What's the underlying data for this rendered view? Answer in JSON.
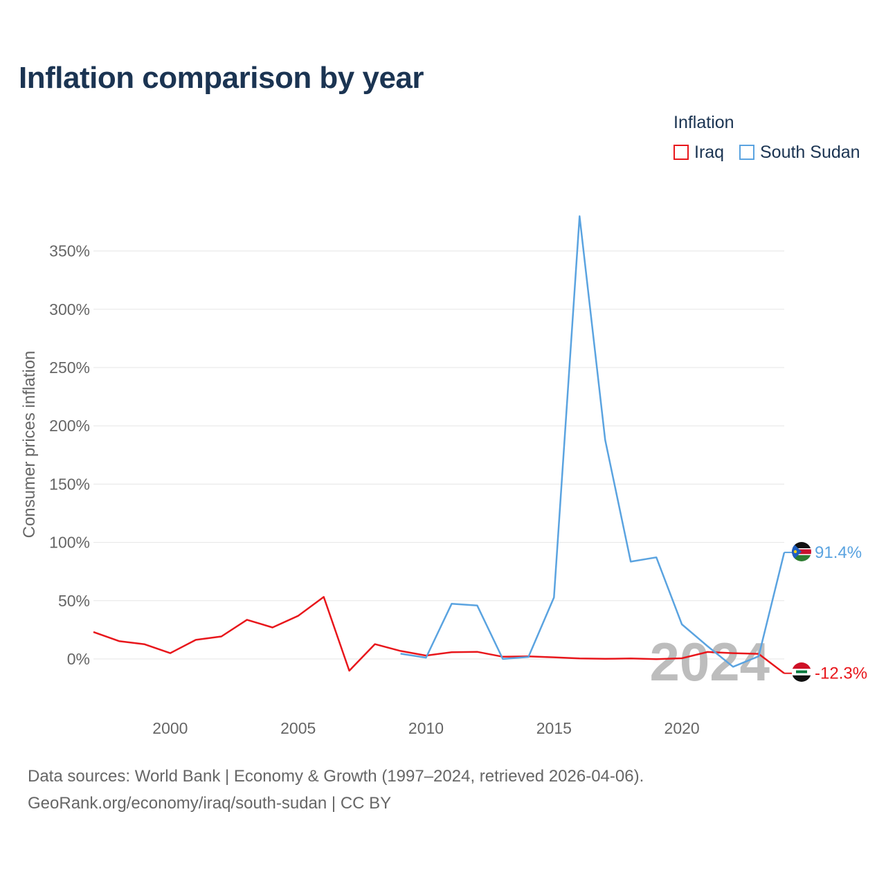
{
  "title": "Inflation comparison by year",
  "legend": {
    "title": "Inflation",
    "items": [
      {
        "name": "Iraq",
        "color": "#e8161b"
      },
      {
        "name": "South Sudan",
        "color": "#5aa3e0"
      }
    ]
  },
  "chart_data": {
    "type": "line",
    "title": "Inflation comparison by year",
    "xlabel": "",
    "ylabel": "Consumer prices inflation",
    "xlim": [
      1997,
      2024
    ],
    "ylim": [
      -35,
      390
    ],
    "x_ticks": [
      2000,
      2005,
      2010,
      2015,
      2020
    ],
    "y_ticks": [
      0,
      50,
      100,
      150,
      200,
      250,
      300,
      350
    ],
    "y_tick_labels": [
      "0%",
      "50%",
      "100%",
      "150%",
      "200%",
      "250%",
      "300%",
      "350%"
    ],
    "grid": true,
    "year_watermark": "2024",
    "series": [
      {
        "name": "Iraq",
        "color": "#e8161b",
        "flag": "iraq-flag-icon",
        "end_label": "-12.3%",
        "x": [
          1997,
          1998,
          1999,
          2000,
          2001,
          2002,
          2003,
          2004,
          2005,
          2006,
          2007,
          2008,
          2009,
          2010,
          2011,
          2012,
          2013,
          2014,
          2015,
          2016,
          2017,
          2018,
          2019,
          2020,
          2021,
          2022,
          2023,
          2024
        ],
        "values": [
          23.1,
          15.3,
          12.6,
          5.0,
          16.4,
          19.3,
          33.6,
          27.0,
          37.0,
          53.2,
          -10.1,
          12.7,
          6.9,
          2.9,
          5.8,
          6.1,
          1.9,
          2.2,
          1.4,
          0.5,
          0.1,
          0.4,
          -0.2,
          0.6,
          6.0,
          5.0,
          4.4,
          -12.3
        ]
      },
      {
        "name": "South Sudan",
        "color": "#5aa3e0",
        "flag": "south-sudan-flag-icon",
        "end_label": "91.4%",
        "x": [
          2009,
          2010,
          2011,
          2012,
          2013,
          2014,
          2015,
          2016,
          2017,
          2018,
          2019,
          2020,
          2021,
          2022,
          2023,
          2024
        ],
        "values": [
          4.5,
          1.1,
          47.3,
          45.9,
          0.0,
          1.7,
          52.8,
          379.8,
          187.9,
          83.5,
          87.2,
          29.7,
          11.0,
          -6.7,
          2.3,
          91.4
        ]
      }
    ]
  },
  "footer": {
    "line1": "Data sources: World Bank | Economy & Growth (1997–2024, retrieved 2026-04-06).",
    "line2": "GeoRank.org/economy/iraq/south-sudan | CC BY"
  }
}
